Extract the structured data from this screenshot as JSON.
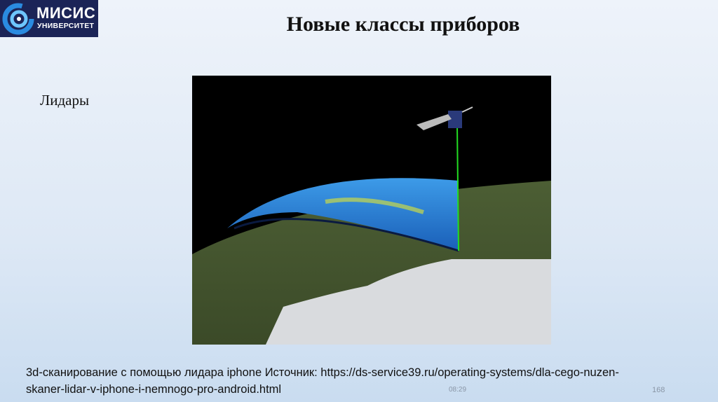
{
  "logo": {
    "line1": "МИСИС",
    "line2": "УНИВЕРСИТЕТ"
  },
  "slide": {
    "title": "Новые классы приборов",
    "subtitle": "Лидары",
    "caption": "3d-сканирование с помощью лидара iphone Источник: https://ds-service39.ru/operating-systems/dla-cego-nuzen-skaner-lidar-v-iphone-i-nemnogo-pro-android.html",
    "time": "08:29",
    "page_number": "168"
  },
  "colors": {
    "logo_bg": "#1b2457",
    "laser": "#22dd22",
    "lidar_curtain": "#2a7fd0"
  }
}
